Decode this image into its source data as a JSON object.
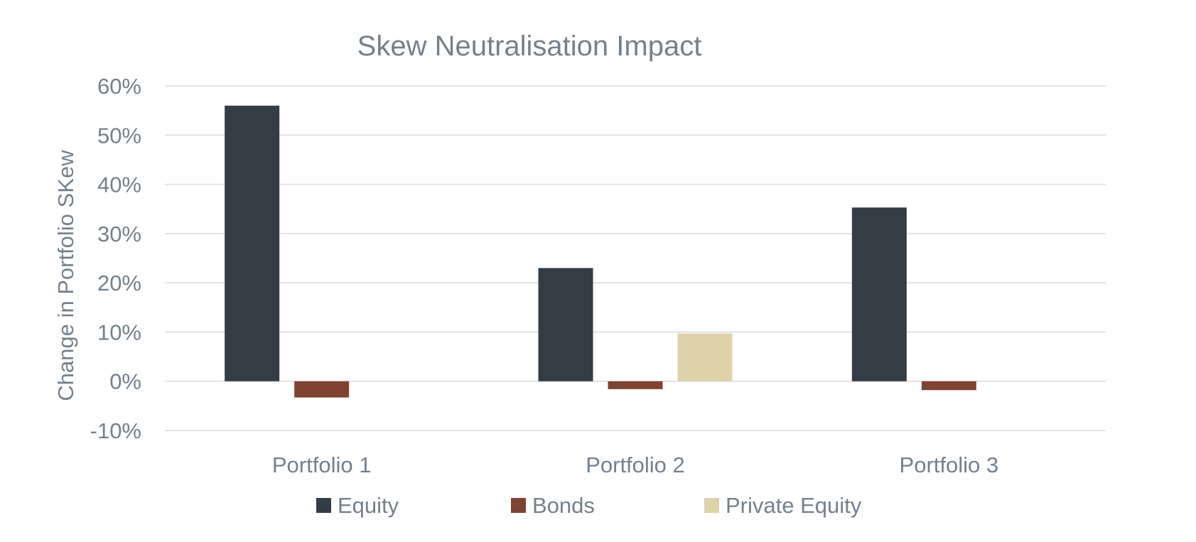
{
  "chart_data": {
    "type": "bar",
    "title": "Skew Neutralisation Impact",
    "xlabel": "",
    "ylabel": "Change in Portfolio SKew",
    "categories": [
      "Portfolio 1",
      "Portfolio 2",
      "Portfolio 3"
    ],
    "series": [
      {
        "name": "Equity",
        "color": "#343c45",
        "values": [
          56,
          23,
          35.3
        ]
      },
      {
        "name": "Bonds",
        "color": "#7f4331",
        "values": [
          -3.3,
          -1.6,
          -1.8
        ]
      },
      {
        "name": "Private Equity",
        "color": "#ded2ab",
        "values": [
          null,
          9.7,
          null
        ]
      }
    ],
    "ylim": [
      -10,
      60
    ],
    "yticks": [
      60,
      50,
      40,
      30,
      20,
      10,
      0,
      -10
    ],
    "ytick_labels": [
      "60%",
      "50%",
      "40%",
      "30%",
      "20%",
      "10%",
      "0%",
      "-10%"
    ],
    "grid": true,
    "legend_position": "bottom"
  }
}
